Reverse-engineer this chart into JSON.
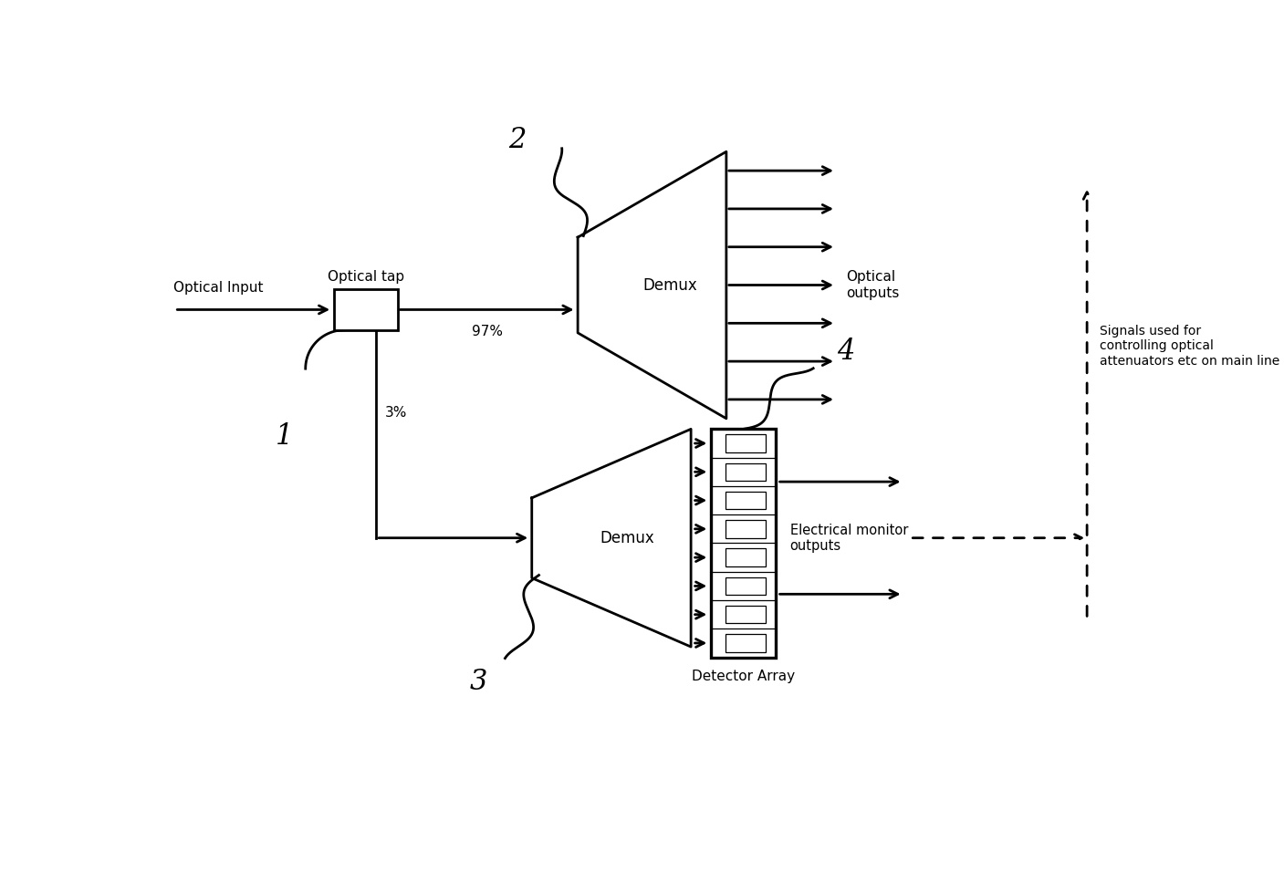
{
  "bg_color": "#ffffff",
  "line_color": "#000000",
  "figsize": [
    14.07,
    9.68
  ],
  "dpi": 100,
  "labels": {
    "optical_input": "Optical Input",
    "optical_tap": "Optical tap",
    "pct97": "97%",
    "pct3": "3%",
    "demux_upper": "Demux",
    "demux_lower": "Demux",
    "optical_outputs": "Optical\noutputs",
    "electrical_monitor": "Electrical monitor\noutputs",
    "detector_array": "Detector Array",
    "signals_used": "Signals used for\ncontrolling optical\nattenuators etc on main line",
    "label1": "1",
    "label2": "2",
    "label3": "3",
    "label4": "4"
  }
}
